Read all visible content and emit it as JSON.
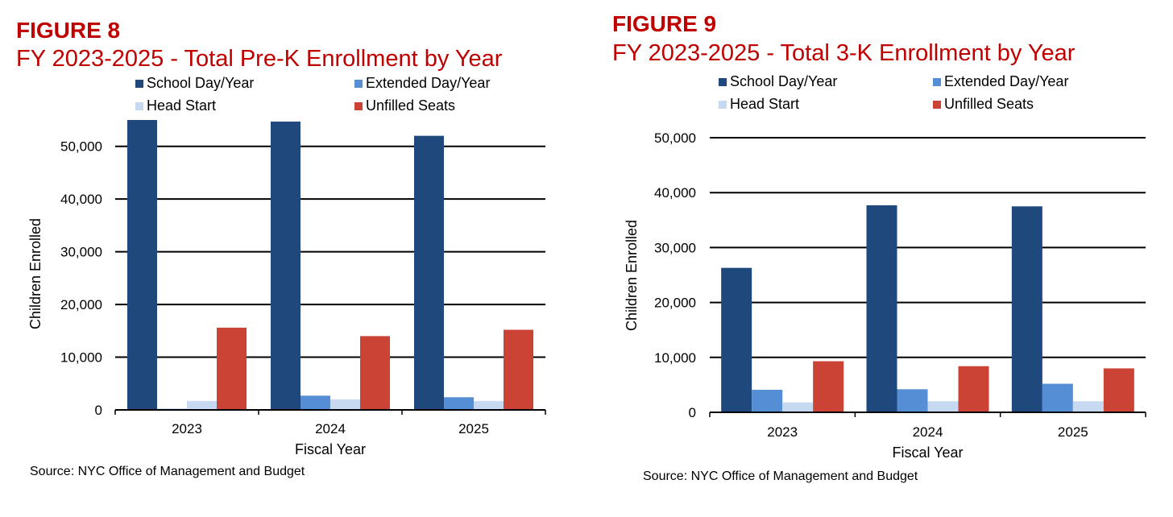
{
  "chart_data": [
    {
      "type": "bar",
      "figure_label": "FIGURE 8",
      "title": "FY 2023-2025 - Total Pre-K Enrollment by Year",
      "xlabel": "Fiscal Year",
      "ylabel": "Children Enrolled",
      "ylim": [
        0,
        55000
      ],
      "yticks": [
        0,
        10000,
        20000,
        30000,
        40000,
        50000
      ],
      "ytick_labels": [
        "0",
        "10,000",
        "20,000",
        "30,000",
        "40,000",
        "50,000"
      ],
      "grid": true,
      "legend_position": "top",
      "categories": [
        "2023",
        "2024",
        "2025"
      ],
      "series": [
        {
          "name": "School Day/Year",
          "color": "#1f497d",
          "values": [
            55000,
            54700,
            52000
          ]
        },
        {
          "name": "Extended Day/Year",
          "color": "#558ed5",
          "values": [
            200,
            2700,
            2400
          ]
        },
        {
          "name": "Head Start",
          "color": "#c6d9f1",
          "values": [
            1700,
            2000,
            1700
          ]
        },
        {
          "name": "Unfilled Seats",
          "color": "#cb4335",
          "values": [
            15600,
            14000,
            15200
          ]
        }
      ],
      "source": "Source: NYC Office of Management and Budget"
    },
    {
      "type": "bar",
      "figure_label": "FIGURE 9",
      "title": "FY 2023-2025 - Total 3-K Enrollment by Year",
      "xlabel": "Fiscal Year",
      "ylabel": "Children Enrolled",
      "ylim": [
        0,
        50000
      ],
      "yticks": [
        0,
        10000,
        20000,
        30000,
        40000,
        50000
      ],
      "ytick_labels": [
        "0",
        "10,000",
        "20,000",
        "30,000",
        "40,000",
        "50,000"
      ],
      "grid": true,
      "legend_position": "top",
      "categories": [
        "2023",
        "2024",
        "2025"
      ],
      "series": [
        {
          "name": "School Day/Year",
          "color": "#1f497d",
          "values": [
            26300,
            37700,
            37500
          ]
        },
        {
          "name": "Extended Day/Year",
          "color": "#558ed5",
          "values": [
            4100,
            4200,
            5200
          ]
        },
        {
          "name": "Head Start",
          "color": "#c6d9f1",
          "values": [
            1800,
            2000,
            2000
          ]
        },
        {
          "name": "Unfilled Seats",
          "color": "#cb4335",
          "values": [
            9300,
            8400,
            8000
          ]
        }
      ],
      "source": "Source: NYC Office of Management and Budget"
    }
  ]
}
